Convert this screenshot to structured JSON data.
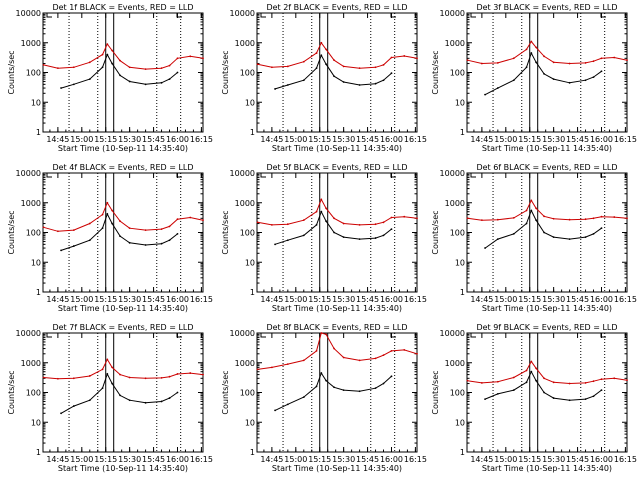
{
  "chart_data": {
    "type": "line",
    "yscale": "log",
    "ylim": [
      1,
      10000
    ],
    "ylabel": "Counts/sec",
    "xlabel": "Start Time (10-Sep-11 14:35:40)",
    "ytick_labels": [
      "1",
      "10",
      "100",
      "1000",
      "10000"
    ],
    "series_names": [
      "Events",
      "LLD"
    ],
    "series_colors": {
      "Events": "#000000",
      "LLD": "#cc0000"
    },
    "panels": [
      {
        "title": "Det 1f BLACK = Events, RED = LLD",
        "xtick_labels": [
          "14:45",
          "15:00",
          "15:15",
          "15:30",
          "15:45",
          "16:00",
          "16:15"
        ],
        "vlines_dotted": [
          "14:52",
          "15:10",
          "15:47",
          "16:02"
        ],
        "vlines_solid": [
          "15:15",
          "15:20"
        ],
        "series": [
          {
            "name": "LLD",
            "x": [
              "14:36",
              "14:45",
              "14:55",
              "15:05",
              "15:13",
              "15:16",
              "15:19",
              "15:24",
              "15:30",
              "15:40",
              "15:50",
              "15:55",
              "16:00",
              "16:08",
              "16:16"
            ],
            "y": [
              180,
              140,
              150,
              220,
              400,
              900,
              550,
              250,
              150,
              130,
              140,
              170,
              300,
              350,
              300
            ]
          },
          {
            "name": "Events",
            "x": [
              "14:47",
              "14:55",
              "15:05",
              "15:13",
              "15:16",
              "15:19",
              "15:24",
              "15:30",
              "15:40",
              "15:50",
              "15:55",
              "16:00"
            ],
            "y": [
              30,
              40,
              60,
              150,
              400,
              200,
              80,
              50,
              40,
              45,
              60,
              100
            ]
          }
        ]
      },
      {
        "title": "Det 2f BLACK = Events, RED = LLD",
        "xtick_labels": [
          "14:45",
          "15:00",
          "15:15",
          "15:30",
          "15:45",
          "16:00",
          "16:15"
        ],
        "vlines_dotted": [
          "14:52",
          "15:10",
          "15:47",
          "16:02"
        ],
        "vlines_solid": [
          "15:15",
          "15:20"
        ],
        "series": [
          {
            "name": "LLD",
            "x": [
              "14:36",
              "14:45",
              "14:55",
              "15:05",
              "15:13",
              "15:16",
              "15:19",
              "15:24",
              "15:30",
              "15:40",
              "15:50",
              "15:55",
              "16:00",
              "16:08",
              "16:16"
            ],
            "y": [
              190,
              150,
              160,
              230,
              450,
              1000,
              600,
              260,
              160,
              140,
              150,
              180,
              320,
              360,
              300
            ]
          },
          {
            "name": "Events",
            "x": [
              "14:47",
              "14:55",
              "15:05",
              "15:13",
              "15:16",
              "15:19",
              "15:24",
              "15:30",
              "15:40",
              "15:50",
              "15:55",
              "16:00"
            ],
            "y": [
              28,
              38,
              55,
              140,
              380,
              190,
              75,
              48,
              38,
              42,
              55,
              95
            ]
          }
        ]
      },
      {
        "title": "Det 3f BLACK = Events, RED = LLD",
        "xtick_labels": [
          "14:45",
          "15:00",
          "15:15",
          "15:30",
          "15:45",
          "16:00",
          "16:15"
        ],
        "vlines_dotted": [
          "14:52",
          "15:10",
          "15:47",
          "16:02"
        ],
        "vlines_solid": [
          "15:15",
          "15:20"
        ],
        "series": [
          {
            "name": "LLD",
            "x": [
              "14:36",
              "14:45",
              "14:55",
              "15:05",
              "15:13",
              "15:16",
              "15:19",
              "15:24",
              "15:30",
              "15:40",
              "15:50",
              "15:55",
              "16:00",
              "16:08",
              "16:16"
            ],
            "y": [
              260,
              200,
              210,
              300,
              600,
              1100,
              700,
              350,
              220,
              200,
              210,
              240,
              300,
              320,
              260
            ]
          },
          {
            "name": "Events",
            "x": [
              "14:47",
              "14:55",
              "15:05",
              "15:13",
              "15:16",
              "15:19",
              "15:24",
              "15:30",
              "15:40",
              "15:50",
              "15:55",
              "16:00"
            ],
            "y": [
              18,
              30,
              55,
              150,
              450,
              220,
              90,
              60,
              45,
              55,
              70,
              110
            ]
          }
        ]
      },
      {
        "title": "Det 4f BLACK = Events, RED = LLD",
        "xtick_labels": [
          "14:45",
          "15:00",
          "15:15",
          "15:30",
          "15:45",
          "16:00",
          "16:15"
        ],
        "vlines_dotted": [
          "14:52",
          "15:10",
          "15:47",
          "16:02"
        ],
        "vlines_solid": [
          "15:15",
          "15:20"
        ],
        "series": [
          {
            "name": "LLD",
            "x": [
              "14:36",
              "14:45",
              "14:55",
              "15:05",
              "15:13",
              "15:16",
              "15:19",
              "15:24",
              "15:30",
              "15:40",
              "15:50",
              "15:55",
              "16:00",
              "16:08",
              "16:16"
            ],
            "y": [
              150,
              110,
              120,
              200,
              400,
              1000,
              550,
              240,
              140,
              120,
              130,
              160,
              280,
              320,
              260
            ]
          },
          {
            "name": "Events",
            "x": [
              "14:47",
              "14:55",
              "15:05",
              "15:13",
              "15:16",
              "15:19",
              "15:24",
              "15:30",
              "15:40",
              "15:50",
              "15:55",
              "16:00"
            ],
            "y": [
              25,
              35,
              55,
              140,
              420,
              200,
              75,
              45,
              38,
              42,
              55,
              90
            ]
          }
        ]
      },
      {
        "title": "Det 5f BLACK = Events, RED = LLD",
        "xtick_labels": [
          "14:45",
          "15:00",
          "15:15",
          "15:30",
          "15:45",
          "16:00",
          "16:15"
        ],
        "vlines_dotted": [
          "14:52",
          "15:10",
          "15:47",
          "16:02"
        ],
        "vlines_solid": [
          "15:15",
          "15:20"
        ],
        "series": [
          {
            "name": "LLD",
            "x": [
              "14:36",
              "14:45",
              "14:55",
              "15:05",
              "15:13",
              "15:16",
              "15:19",
              "15:24",
              "15:30",
              "15:40",
              "15:50",
              "15:55",
              "16:00",
              "16:08",
              "16:16"
            ],
            "y": [
              220,
              180,
              190,
              260,
              500,
              1300,
              650,
              300,
              200,
              180,
              190,
              220,
              320,
              340,
              300
            ]
          },
          {
            "name": "Events",
            "x": [
              "14:47",
              "14:55",
              "15:05",
              "15:13",
              "15:16",
              "15:19",
              "15:24",
              "15:30",
              "15:40",
              "15:50",
              "15:55",
              "16:00"
            ],
            "y": [
              40,
              55,
              80,
              180,
              500,
              240,
              100,
              70,
              60,
              65,
              80,
              130
            ]
          }
        ]
      },
      {
        "title": "Det 6f BLACK = Events, RED = LLD",
        "xtick_labels": [
          "14:45",
          "15:00",
          "15:15",
          "15:30",
          "15:45",
          "16:00",
          "16:15"
        ],
        "vlines_dotted": [
          "14:52",
          "15:10",
          "15:47",
          "16:02"
        ],
        "vlines_solid": [
          "15:15",
          "15:20"
        ],
        "series": [
          {
            "name": "LLD",
            "x": [
              "14:36",
              "14:45",
              "14:55",
              "15:05",
              "15:13",
              "15:16",
              "15:19",
              "15:24",
              "15:30",
              "15:40",
              "15:50",
              "15:55",
              "16:00",
              "16:08",
              "16:16"
            ],
            "y": [
              300,
              260,
              270,
              310,
              550,
              1200,
              650,
              350,
              290,
              270,
              280,
              300,
              340,
              330,
              300
            ]
          },
          {
            "name": "Events",
            "x": [
              "14:47",
              "14:55",
              "15:05",
              "15:13",
              "15:16",
              "15:19",
              "15:24",
              "15:30",
              "15:40",
              "15:50",
              "15:55",
              "16:00"
            ],
            "y": [
              30,
              60,
              90,
              200,
              550,
              260,
              100,
              70,
              60,
              70,
              90,
              140
            ]
          }
        ]
      },
      {
        "title": "Det 7f BLACK = Events, RED = LLD",
        "xtick_labels": [
          "14:45",
          "15:00",
          "15:15",
          "15:30",
          "15:45",
          "16:00",
          "16:15"
        ],
        "vlines_dotted": [
          "14:52",
          "15:10",
          "15:47",
          "16:02"
        ],
        "vlines_solid": [
          "15:15",
          "15:20"
        ],
        "series": [
          {
            "name": "LLD",
            "x": [
              "14:36",
              "14:45",
              "14:55",
              "15:05",
              "15:13",
              "15:16",
              "15:19",
              "15:24",
              "15:30",
              "15:40",
              "15:50",
              "15:55",
              "16:00",
              "16:08",
              "16:16"
            ],
            "y": [
              320,
              290,
              300,
              360,
              600,
              1300,
              700,
              400,
              320,
              300,
              310,
              340,
              420,
              450,
              400
            ]
          },
          {
            "name": "Events",
            "x": [
              "14:47",
              "14:55",
              "15:05",
              "15:13",
              "15:16",
              "15:19",
              "15:24",
              "15:30",
              "15:40",
              "15:50",
              "15:55",
              "16:00"
            ],
            "y": [
              20,
              35,
              55,
              140,
              420,
              200,
              80,
              55,
              45,
              50,
              65,
              100
            ]
          }
        ]
      },
      {
        "title": "Det 8f BLACK = Events, RED = LLD",
        "xtick_labels": [
          "14:45",
          "15:00",
          "15:15",
          "15:30",
          "15:45",
          "16:00",
          "16:15"
        ],
        "vlines_dotted": [
          "14:52",
          "15:10",
          "15:47",
          "16:02"
        ],
        "vlines_solid": [
          "15:15",
          "15:20"
        ],
        "series": [
          {
            "name": "LLD",
            "x": [
              "14:36",
              "14:45",
              "14:55",
              "15:05",
              "15:13",
              "15:16",
              "15:19",
              "15:24",
              "15:30",
              "15:40",
              "15:50",
              "15:55",
              "16:00",
              "16:08",
              "16:16"
            ],
            "y": [
              600,
              700,
              900,
              1200,
              2500,
              10000,
              9000,
              3000,
              1500,
              1200,
              1400,
              1800,
              2500,
              2700,
              2000
            ]
          },
          {
            "name": "Events",
            "x": [
              "14:47",
              "14:55",
              "15:05",
              "15:13",
              "15:16",
              "15:19",
              "15:24",
              "15:30",
              "15:40",
              "15:50",
              "15:55",
              "16:00"
            ],
            "y": [
              25,
              40,
              70,
              160,
              450,
              250,
              150,
              120,
              110,
              140,
              200,
              350
            ]
          }
        ]
      },
      {
        "title": "Det 9f BLACK = Events, RED = LLD",
        "xtick_labels": [
          "14:45",
          "15:00",
          "15:15",
          "15:30",
          "15:45",
          "16:00",
          "16:15"
        ],
        "vlines_dotted": [
          "14:52",
          "15:10",
          "15:47",
          "16:02"
        ],
        "vlines_solid": [
          "15:15",
          "15:20"
        ],
        "series": [
          {
            "name": "LLD",
            "x": [
              "14:36",
              "14:45",
              "14:55",
              "15:05",
              "15:13",
              "15:16",
              "15:19",
              "15:24",
              "15:30",
              "15:40",
              "15:50",
              "15:55",
              "16:00",
              "16:08",
              "16:16"
            ],
            "y": [
              250,
              210,
              230,
              320,
              550,
              1100,
              650,
              300,
              220,
              200,
              210,
              240,
              280,
              300,
              260
            ]
          },
          {
            "name": "Events",
            "x": [
              "14:47",
              "14:55",
              "15:05",
              "15:13",
              "15:16",
              "15:19",
              "15:24",
              "15:30",
              "15:40",
              "15:50",
              "15:55",
              "16:00"
            ],
            "y": [
              60,
              90,
              120,
              220,
              500,
              250,
              100,
              65,
              55,
              60,
              75,
              120
            ]
          }
        ]
      }
    ]
  }
}
